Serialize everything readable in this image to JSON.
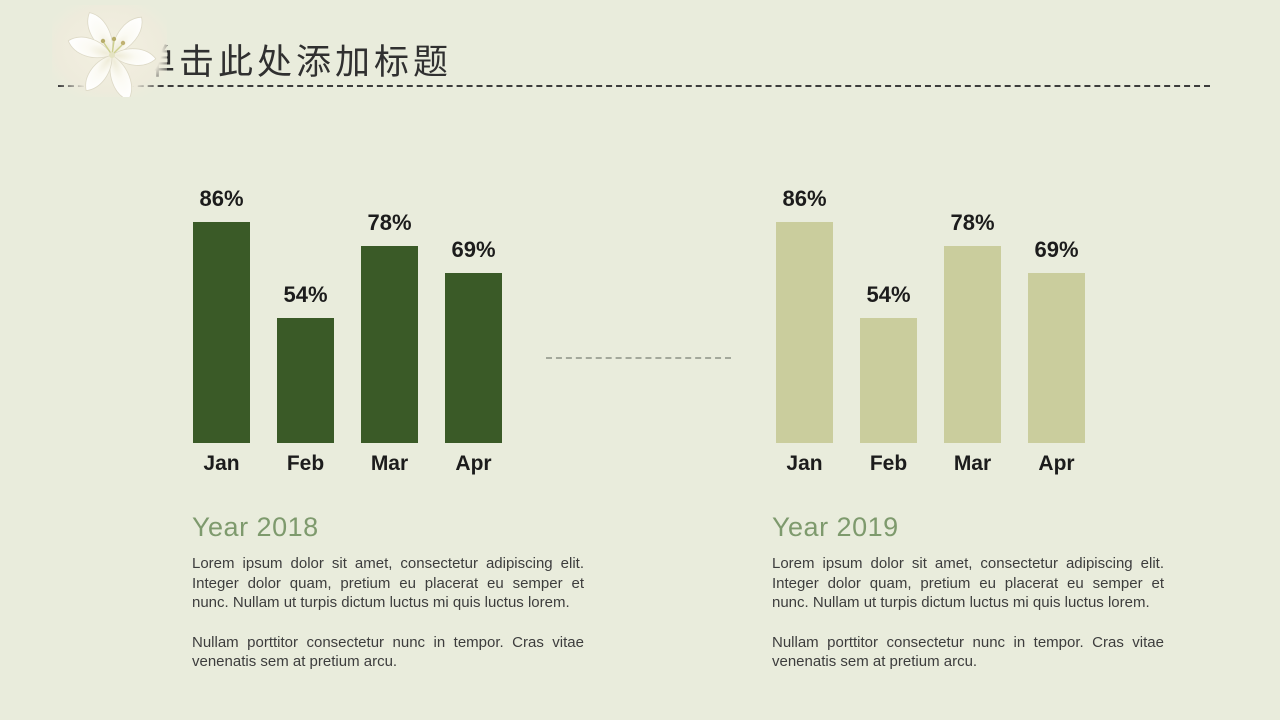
{
  "slide": {
    "title": "单击此处添加标题"
  },
  "colors": {
    "background": "#e9ecdc",
    "bar_dark_green": "#3a5a27",
    "bar_light_olive": "#cacd9d",
    "heading_green": "#7e9a6d",
    "body_text": "#3d3d3d"
  },
  "sections": [
    {
      "heading": "Year 2018",
      "paragraph1": "Lorem ipsum dolor sit amet, consectetur adipiscing elit. Integer dolor quam, pretium eu placerat eu semper et nunc. Nullam ut turpis dictum luctus mi quis luctus lorem.",
      "paragraph2": "Nullam porttitor consectetur nunc in tempor. Cras vitae venenatis sem at pretium arcu."
    },
    {
      "heading": "Year 2019",
      "paragraph1": "Lorem ipsum dolor sit amet, consectetur adipiscing elit. Integer dolor quam, pretium eu placerat eu semper et nunc. Nullam ut turpis dictum luctus mi quis luctus lorem.",
      "paragraph2": "Nullam porttitor consectetur nunc in tempor. Cras vitae venenatis sem at pretium arcu."
    }
  ],
  "chart_data": [
    {
      "type": "bar",
      "title": "Year 2018",
      "categories": [
        "Jan",
        "Feb",
        "Mar",
        "Apr"
      ],
      "values": [
        86,
        54,
        78,
        69
      ],
      "value_labels": [
        "86%",
        "54%",
        "78%",
        "69%"
      ],
      "bar_color": "#3a5a27",
      "xlabel": "",
      "ylabel": "",
      "ylim": [
        0,
        100
      ],
      "grid": false,
      "legend": false,
      "axis_visible": false
    },
    {
      "type": "bar",
      "title": "Year 2019",
      "categories": [
        "Jan",
        "Feb",
        "Mar",
        "Apr"
      ],
      "values": [
        86,
        54,
        78,
        69
      ],
      "value_labels": [
        "86%",
        "54%",
        "78%",
        "69%"
      ],
      "bar_color": "#cacd9d",
      "xlabel": "",
      "ylabel": "",
      "ylim": [
        0,
        100
      ],
      "grid": false,
      "legend": false,
      "axis_visible": false
    }
  ]
}
